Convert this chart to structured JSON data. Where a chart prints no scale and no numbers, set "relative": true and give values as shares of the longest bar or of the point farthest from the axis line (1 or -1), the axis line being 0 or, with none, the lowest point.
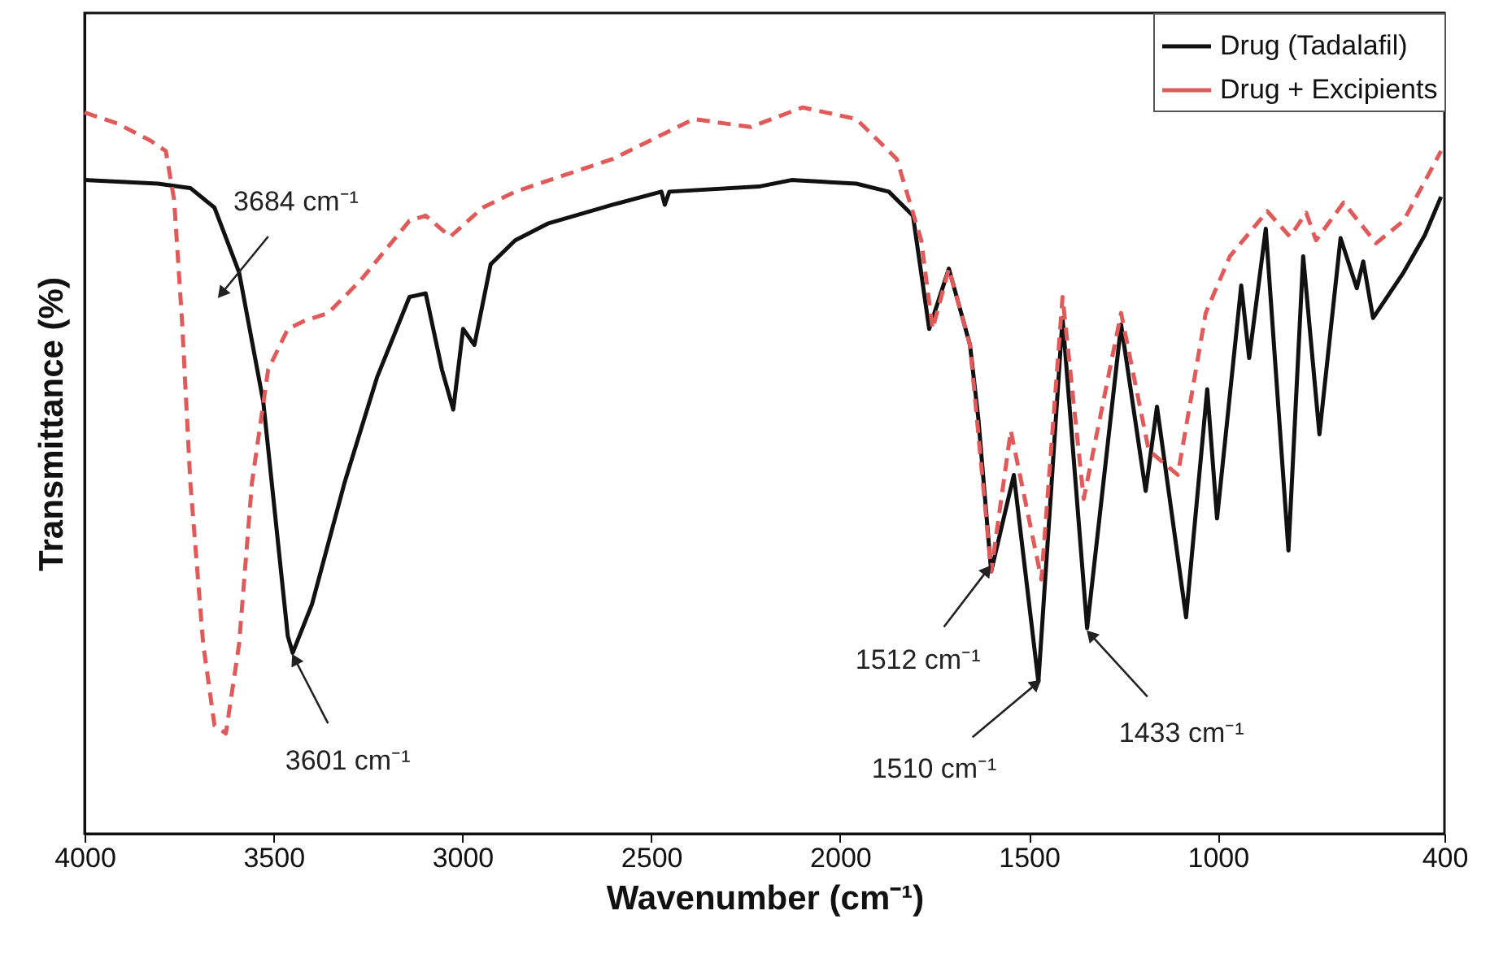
{
  "chart_data": {
    "type": "line",
    "relative": true,
    "xlabel": "Wavenumber (cm⁻¹)",
    "ylabel": "Transmittance (%)",
    "xlim": [
      4000,
      400
    ],
    "xticks": [
      4000,
      3500,
      3000,
      2500,
      2000,
      1500,
      1000,
      400
    ],
    "grid": false,
    "legend": "top right",
    "tick_labels": "x",
    "series": [
      {
        "name": "Drug (Tadalafil)",
        "color": "#111111",
        "line_style": "solid",
        "x": [
          4000,
          3806,
          3720,
          3656,
          3591,
          3527,
          3462,
          3449,
          3398,
          3312,
          3226,
          3140,
          3097,
          3054,
          3024,
          2998,
          2968,
          2925,
          2860,
          2774,
          2602,
          2473,
          2464,
          2452,
          2215,
          2129,
          1957,
          1871,
          1807,
          1764,
          1712,
          1656,
          1634,
          1600,
          1540,
          1475,
          1411,
          1346,
          1256,
          1191,
          1161,
          1084,
          1028,
          1002,
          938,
          917,
          873,
          813,
          774,
          731,
          675,
          632,
          615,
          589,
          508,
          452,
          409
        ],
        "values": [
          0.9,
          0.895,
          0.889,
          0.862,
          0.773,
          0.595,
          0.272,
          0.249,
          0.316,
          0.483,
          0.628,
          0.739,
          0.744,
          0.639,
          0.584,
          0.695,
          0.673,
          0.784,
          0.817,
          0.84,
          0.866,
          0.884,
          0.866,
          0.884,
          0.891,
          0.9,
          0.895,
          0.884,
          0.851,
          0.695,
          0.778,
          0.673,
          0.572,
          0.361,
          0.494,
          0.209,
          0.71,
          0.283,
          0.701,
          0.472,
          0.588,
          0.298,
          0.612,
          0.434,
          0.755,
          0.655,
          0.833,
          0.39,
          0.795,
          0.55,
          0.82,
          0.751,
          0.788,
          0.71,
          0.773,
          0.824,
          0.877
        ]
      },
      {
        "name": "Drug + Excipients",
        "color": "#e05a5a",
        "line_style": "dashed",
        "x": [
          4000,
          3914,
          3828,
          3785,
          3763,
          3742,
          3720,
          3686,
          3656,
          3626,
          3591,
          3557,
          3514,
          3462,
          3419,
          3355,
          3269,
          3140,
          3097,
          3032,
          2946,
          2860,
          2602,
          2387,
          2237,
          2099,
          1957,
          1850,
          1785,
          1755,
          1712,
          1656,
          1600,
          1548,
          1467,
          1411,
          1355,
          1256,
          1183,
          1106,
          1032,
          968,
          869,
          809,
          766,
          740,
          667,
          581,
          508,
          409
        ],
        "values": [
          0.993,
          0.978,
          0.955,
          0.94,
          0.873,
          0.706,
          0.483,
          0.261,
          0.149,
          0.138,
          0.261,
          0.483,
          0.639,
          0.695,
          0.706,
          0.717,
          0.762,
          0.844,
          0.851,
          0.822,
          0.862,
          0.884,
          0.929,
          0.984,
          0.973,
          1.0,
          0.984,
          0.929,
          0.817,
          0.695,
          0.778,
          0.673,
          0.361,
          0.555,
          0.35,
          0.739,
          0.461,
          0.717,
          0.528,
          0.494,
          0.717,
          0.795,
          0.857,
          0.822,
          0.855,
          0.817,
          0.869,
          0.813,
          0.844,
          0.94
        ]
      }
    ],
    "annotations": [
      {
        "text": "3684 cm⁻¹",
        "x": 3634,
        "y": 0.746
      },
      {
        "text": "3601 cm⁻¹",
        "x": 3441,
        "y": 0.238
      },
      {
        "text": "1512 cm⁻¹",
        "x": 1613,
        "y": 0.361
      },
      {
        "text": "1510 cm⁻¹",
        "x": 1484,
        "y": 0.205
      },
      {
        "text": "1433 cm⁻¹",
        "x": 1333,
        "y": 0.272
      }
    ]
  }
}
